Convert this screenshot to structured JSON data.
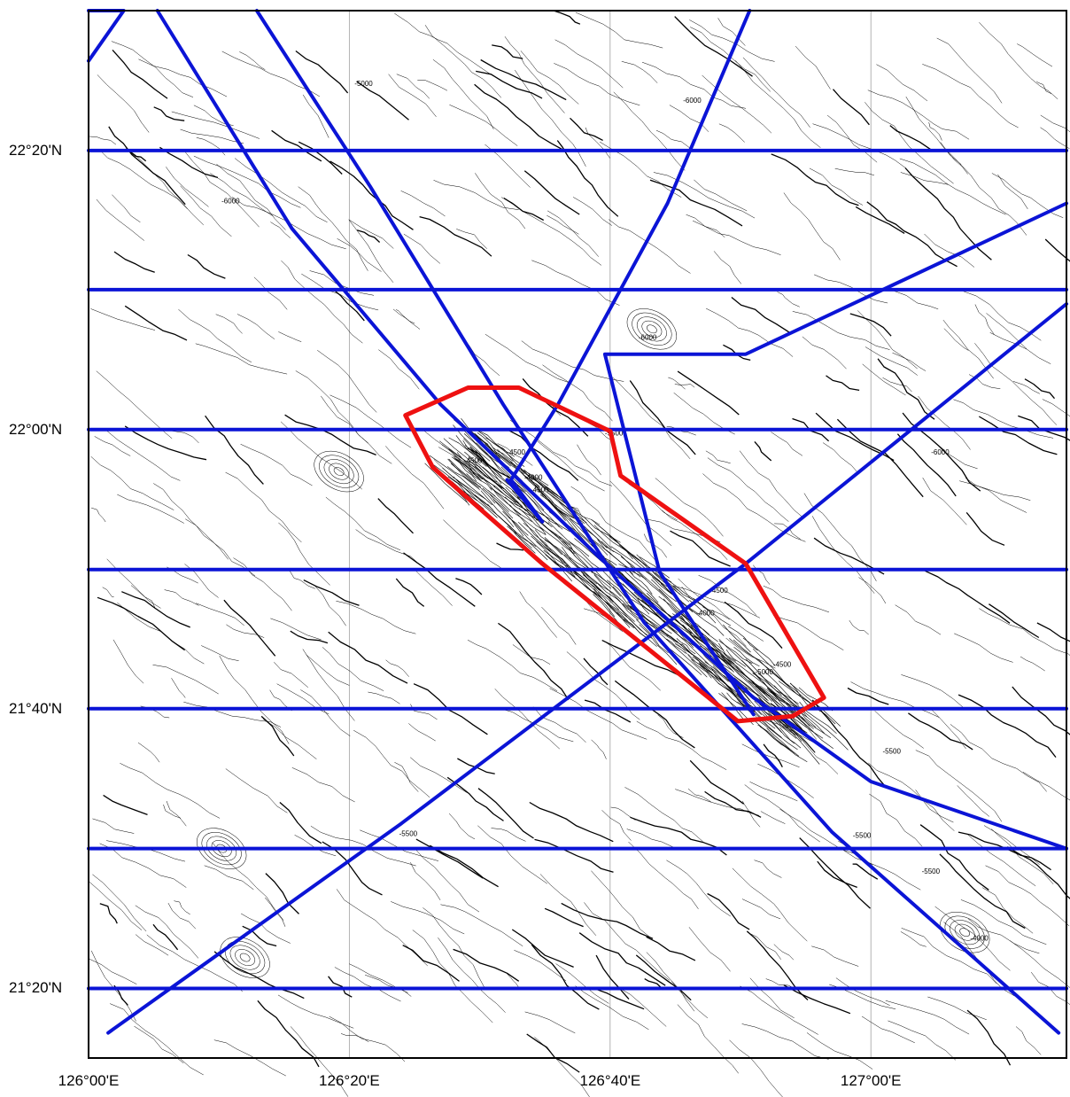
{
  "map": {
    "lat_labels": [
      {
        "text": "22°20'N",
        "lat": 22.3333
      },
      {
        "text": "22°00'N",
        "lat": 22.0
      },
      {
        "text": "21°40'N",
        "lat": 21.6667
      },
      {
        "text": "21°20'N",
        "lat": 21.3333
      }
    ],
    "lon_labels": [
      {
        "text": "126°00'E",
        "lon": 126.0
      },
      {
        "text": "126°20'E",
        "lon": 126.3333
      },
      {
        "text": "126°40'E",
        "lon": 126.6667
      },
      {
        "text": "127°00'E",
        "lon": 127.0
      }
    ],
    "contour_labels": [
      {
        "text": "-5000",
        "lon": 126.34,
        "lat": 22.41
      },
      {
        "text": "-6000",
        "lon": 126.76,
        "lat": 22.39
      },
      {
        "text": "-6000",
        "lon": 126.17,
        "lat": 22.27
      },
      {
        "text": "-6000",
        "lon": 126.703,
        "lat": 22.107
      },
      {
        "text": "-5500",
        "lon": 126.66,
        "lat": 21.993
      },
      {
        "text": "-4500",
        "lon": 126.535,
        "lat": 21.97
      },
      {
        "text": "-4500",
        "lon": 126.48,
        "lat": 21.96
      },
      {
        "text": "-4000",
        "lon": 126.557,
        "lat": 21.94
      },
      {
        "text": "-4500",
        "lon": 126.565,
        "lat": 21.925
      },
      {
        "text": "-6000",
        "lon": 127.077,
        "lat": 21.97
      },
      {
        "text": "-4500",
        "lon": 126.794,
        "lat": 21.805
      },
      {
        "text": "-4000",
        "lon": 126.777,
        "lat": 21.778
      },
      {
        "text": "-4500",
        "lon": 126.875,
        "lat": 21.717
      },
      {
        "text": "-5000",
        "lon": 126.852,
        "lat": 21.708
      },
      {
        "text": "-5500",
        "lon": 127.015,
        "lat": 21.613
      },
      {
        "text": "-5500",
        "lon": 126.397,
        "lat": 21.515
      },
      {
        "text": "-5500",
        "lon": 126.977,
        "lat": 21.513
      },
      {
        "text": "-5500",
        "lon": 127.065,
        "lat": 21.47
      },
      {
        "text": "-4000",
        "lon": 127.127,
        "lat": 21.39
      }
    ],
    "colors": {
      "track": "#0b14d6",
      "survey_polygon": "#ee1111",
      "grid": "#a0a0a0",
      "contour": "#000000"
    },
    "tracks": [
      [
        [
          126.0,
          22.333
        ],
        [
          127.25,
          22.333
        ]
      ],
      [
        [
          126.0,
          22.167
        ],
        [
          127.25,
          22.167
        ]
      ],
      [
        [
          126.0,
          22.0
        ],
        [
          127.25,
          22.0
        ]
      ],
      [
        [
          126.0,
          21.833
        ],
        [
          127.25,
          21.833
        ]
      ],
      [
        [
          126.0,
          21.667
        ],
        [
          127.25,
          21.667
        ]
      ],
      [
        [
          126.0,
          21.5
        ],
        [
          127.25,
          21.5
        ]
      ],
      [
        [
          126.0,
          21.333
        ],
        [
          127.25,
          21.333
        ]
      ],
      [
        [
          126.0,
          22.5
        ],
        [
          126.045,
          22.5
        ],
        [
          126.0,
          22.44
        ]
      ],
      [
        [
          126.088,
          22.5
        ],
        [
          126.26,
          22.24
        ],
        [
          126.45,
          22.03
        ],
        [
          126.65,
          21.85
        ],
        [
          126.85,
          21.68
        ],
        [
          127.0,
          21.58
        ],
        [
          127.25,
          21.5
        ]
      ],
      [
        [
          126.215,
          22.5
        ],
        [
          126.36,
          22.29
        ],
        [
          126.53,
          22.03
        ],
        [
          126.71,
          21.77
        ],
        [
          126.95,
          21.52
        ],
        [
          127.24,
          21.28
        ]
      ],
      [
        [
          126.845,
          22.5
        ],
        [
          126.74,
          22.27
        ],
        [
          126.6,
          22.03
        ],
        [
          126.54,
          21.94
        ],
        [
          126.58,
          21.89
        ],
        [
          126.535,
          21.94
        ]
      ],
      [
        [
          126.025,
          21.28
        ],
        [
          126.4,
          21.53
        ],
        [
          126.84,
          21.84
        ],
        [
          127.25,
          22.15
        ]
      ],
      [
        [
          127.25,
          22.27
        ],
        [
          126.84,
          22.09
        ],
        [
          126.66,
          22.09
        ],
        [
          126.73,
          21.83
        ],
        [
          126.85,
          21.66
        ]
      ]
    ],
    "survey_polygon": [
      [
        126.405,
        22.017
      ],
      [
        126.485,
        22.05
      ],
      [
        126.55,
        22.05
      ],
      [
        126.667,
        21.998
      ],
      [
        126.68,
        21.945
      ],
      [
        126.84,
        21.84
      ],
      [
        126.94,
        21.68
      ],
      [
        126.9,
        21.658
      ],
      [
        126.83,
        21.652
      ],
      [
        126.58,
        21.84
      ],
      [
        126.44,
        21.955
      ]
    ]
  }
}
